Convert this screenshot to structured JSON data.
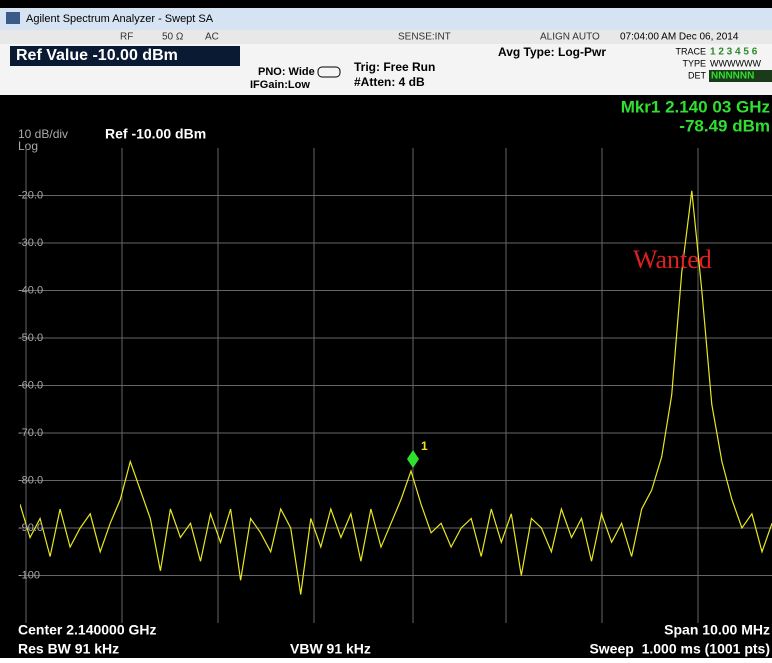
{
  "title_bar": "Agilent Spectrum Analyzer - Swept SA",
  "status_bar": {
    "rf": "RF",
    "impedance": "50 Ω",
    "coupling": "AC",
    "sense": "SENSE:INT",
    "align": "ALIGN AUTO",
    "datetime": "07:04:00 AM Dec 06, 2014"
  },
  "settings": {
    "ref_value": "Ref Value -10.00 dBm",
    "pno": "PNO: Wide",
    "ifgain": "IFGain:Low",
    "trig": "Trig: Free Run",
    "atten": "#Atten: 4 dB",
    "avg_type": "Avg Type: Log-Pwr",
    "trace_label": "TRACE",
    "trace_numbers": "1 2 3 4 5 6",
    "type_label": "TYPE",
    "type_values": "WWWWWW",
    "det_label": "DET",
    "det_values": "NNNNNN"
  },
  "marker": {
    "frequency": "Mkr1 2.140 03 GHz",
    "amplitude": "-78.49 dBm",
    "number": "1"
  },
  "display": {
    "scale": "10 dB/div",
    "ref": "Ref -10.00 dBm",
    "mode": "Log"
  },
  "chart_data": {
    "type": "line",
    "color": "#e8e820",
    "grid": true,
    "ylim": [
      -110,
      -10
    ],
    "yticks": [
      {
        "value": -20,
        "label": "-20.0"
      },
      {
        "value": -30,
        "label": "-30.0"
      },
      {
        "value": -40,
        "label": "-40.0"
      },
      {
        "value": -50,
        "label": "-50.0"
      },
      {
        "value": -60,
        "label": "-60.0"
      },
      {
        "value": -70,
        "label": "-70.0"
      },
      {
        "value": -80,
        "label": "-80.0"
      },
      {
        "value": -90,
        "label": "-90.0"
      },
      -100
    ],
    "values": [
      -85,
      -92,
      -88,
      -96,
      -86,
      -94,
      -90,
      -87,
      -95,
      -89,
      -84,
      -76,
      -82,
      -88,
      -99,
      -86,
      -92,
      -89,
      -97,
      -87,
      -93,
      -86,
      -101,
      -88,
      -91,
      -95,
      -86,
      -90,
      -104,
      -88,
      -94,
      -86,
      -92,
      -87,
      -97,
      -86,
      -94,
      -89,
      -84,
      -78,
      -85,
      -91,
      -89,
      -94,
      -90,
      -88,
      -96,
      -86,
      -93,
      -87,
      -100,
      -88,
      -90,
      -95,
      -86,
      -92,
      -88,
      -97,
      -87,
      -93,
      -89,
      -96,
      -86,
      -82,
      -75,
      -62,
      -36,
      -19,
      -40,
      -64,
      -76,
      -84,
      -90,
      -87,
      -95,
      -89
    ],
    "annotations": [
      "Wanted"
    ]
  },
  "footer": {
    "center": "Center 2.140000 GHz",
    "span": "Span 10.00 MHz",
    "res_bw": "Res BW 91 kHz",
    "vbw": "VBW 91 kHz",
    "sweep": "Sweep  1.000 ms (1001 pts)"
  }
}
